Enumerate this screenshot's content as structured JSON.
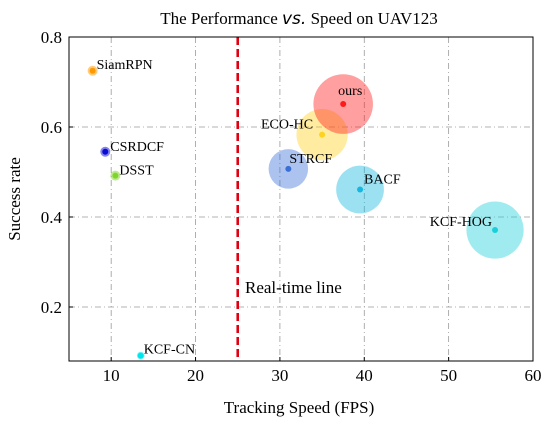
{
  "chart_data": {
    "type": "scatter",
    "title": {
      "pre": "The Performance ",
      "vs": "vs.",
      "post": " Speed on UAV123"
    },
    "xlabel": "Tracking Speed (FPS)",
    "ylabel": "Success rate",
    "xlim": [
      5,
      60
    ],
    "ylim": [
      0.08,
      0.8
    ],
    "x_ticks": [
      10,
      20,
      30,
      40,
      50,
      60
    ],
    "y_ticks": [
      0.2,
      0.4,
      0.6,
      0.8
    ],
    "y_tick_labels": [
      "0.2",
      "0.4",
      "0.6",
      "0.8"
    ],
    "grid": true,
    "realtime_line": {
      "x": 25,
      "label": "Real-time line",
      "color": "#e0000f"
    },
    "points": [
      {
        "name": "SiamRPN",
        "x": 7.8,
        "y": 0.725,
        "size": 1,
        "color": "#ff9900"
      },
      {
        "name": "CSRDCF",
        "x": 9.3,
        "y": 0.545,
        "size": 1,
        "color": "#0a0ad6"
      },
      {
        "name": "DSST",
        "x": 10.5,
        "y": 0.492,
        "size": 1,
        "color": "#7fd62a"
      },
      {
        "name": "KCF-CN",
        "x": 13.5,
        "y": 0.092,
        "size": 0.4,
        "color": "#00e5ee"
      },
      {
        "name": "ECO-HC",
        "x": 35.0,
        "y": 0.583,
        "size": 4.5,
        "color": "#ffd21f"
      },
      {
        "name": "ours",
        "x": 37.5,
        "y": 0.651,
        "size": 5.2,
        "color": "#ff1a1a"
      },
      {
        "name": "STRCF",
        "x": 31.0,
        "y": 0.507,
        "size": 3.5,
        "color": "#3a6fd8"
      },
      {
        "name": "BACF",
        "x": 39.5,
        "y": 0.461,
        "size": 4.2,
        "color": "#13b7e0"
      },
      {
        "name": "KCF-HOG",
        "x": 55.5,
        "y": 0.371,
        "size": 5.0,
        "color": "#1ad0d8"
      }
    ]
  }
}
